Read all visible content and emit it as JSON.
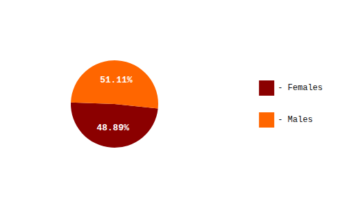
{
  "chart_data": {
    "type": "pie",
    "categories": [
      "- Females",
      "- Males"
    ],
    "values": [
      48.89,
      51.11
    ],
    "value_labels": [
      "48.89%",
      "51.11%"
    ],
    "colors": [
      "#8B0000",
      "#FF6600"
    ],
    "data_labels": true,
    "legend": "right"
  }
}
